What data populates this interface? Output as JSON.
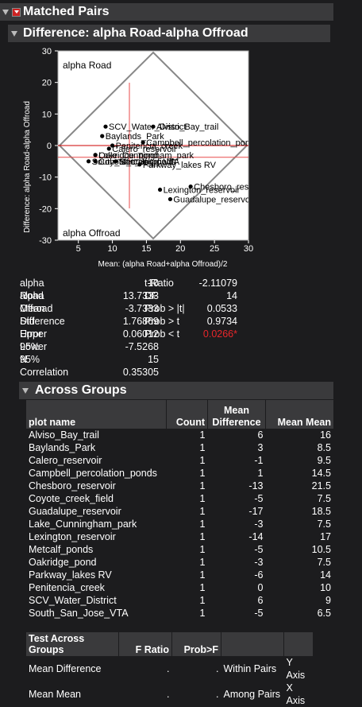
{
  "title": "Matched Pairs",
  "diff_title": "Difference: alpha Road-alpha Offroad",
  "plot": {
    "y_label": "Difference: alpha Road-alpha Offroad",
    "x_label": "Mean: (alpha Road+alpha Offroad)/2",
    "top_label": "alpha Road",
    "bottom_label": "alpha Offroad",
    "x_ticks": [
      "5",
      "10",
      "15",
      "20",
      "25",
      "30"
    ],
    "y_ticks": [
      "30",
      "20",
      "10",
      "0",
      "-10",
      "-20",
      "-30"
    ]
  },
  "chart_data": {
    "type": "scatter",
    "xlabel": "Mean: (alpha Road+alpha Offroad)/2",
    "ylabel": "Difference: alpha Road-alpha Offroad",
    "xlim": [
      2,
      30
    ],
    "ylim": [
      -30,
      30
    ],
    "points": [
      {
        "label": "Alviso_Bay_trail",
        "x": 16,
        "y": 6
      },
      {
        "label": "Baylands_Park",
        "x": 8.5,
        "y": 3
      },
      {
        "label": "Calero_reservoir",
        "x": 9.5,
        "y": -1
      },
      {
        "label": "Campbell_percolation_ponds",
        "x": 14.5,
        "y": 1
      },
      {
        "label": "Chesboro_reservoir",
        "x": 21.5,
        "y": -13
      },
      {
        "label": "Coyote_creek_field",
        "x": 7.5,
        "y": -5
      },
      {
        "label": "Guadalupe_reservoir",
        "x": 18.5,
        "y": -17
      },
      {
        "label": "Lake_Cunningham_park",
        "x": 7.5,
        "y": -3
      },
      {
        "label": "Lexington_reservoir",
        "x": 17,
        "y": -14
      },
      {
        "label": "Metcalf_ponds",
        "x": 10.5,
        "y": -5
      },
      {
        "label": "Oakridge_pond",
        "x": 7.5,
        "y": -3
      },
      {
        "label": "Parkway_lakes RV",
        "x": 14,
        "y": -6
      },
      {
        "label": "Penitencia_creek",
        "x": 10,
        "y": 0
      },
      {
        "label": "SCV_Water_District",
        "x": 9,
        "y": 6
      },
      {
        "label": "South_San_Jose_VTA",
        "x": 6.5,
        "y": -5
      }
    ]
  },
  "stats_left": [
    {
      "label": "alpha Road",
      "value": "10"
    },
    {
      "label": "alpha Offroad",
      "value": "13.7333"
    },
    {
      "label": "Mean Difference",
      "value": "-3.7333"
    },
    {
      "label": "Std Error",
      "value": "1.76869"
    },
    {
      "label": "Upper 95%",
      "value": "0.06012"
    },
    {
      "label": "Lower 95%",
      "value": "-7.5268"
    },
    {
      "label": "N",
      "value": "15"
    },
    {
      "label": "Correlation",
      "value": "0.35305"
    }
  ],
  "stats_right": [
    {
      "label": "t-Ratio",
      "value": "-2.11079"
    },
    {
      "label": "DF",
      "value": "14"
    },
    {
      "label": "Prob > |t|",
      "value": "0.0533"
    },
    {
      "label": "Prob > t",
      "value": "0.9734"
    },
    {
      "label": "Prob < t",
      "value": "0.0266*"
    }
  ],
  "colors": {
    "significant": "#e8262a",
    "mean_line": "#e84a4a",
    "frame": "#888888"
  },
  "across_groups": {
    "title": "Across Groups",
    "headers": [
      "plot name",
      "Count",
      "Mean Difference",
      "Mean Mean"
    ],
    "rows": [
      [
        "Alviso_Bay_trail",
        "1",
        "6",
        "16"
      ],
      [
        "Baylands_Park",
        "1",
        "3",
        "8.5"
      ],
      [
        "Calero_reservoir",
        "1",
        "-1",
        "9.5"
      ],
      [
        "Campbell_percolation_ponds",
        "1",
        "1",
        "14.5"
      ],
      [
        "Chesboro_reservoir",
        "1",
        "-13",
        "21.5"
      ],
      [
        "Coyote_creek_field",
        "1",
        "-5",
        "7.5"
      ],
      [
        "Guadalupe_reservoir",
        "1",
        "-17",
        "18.5"
      ],
      [
        "Lake_Cunningham_park",
        "1",
        "-3",
        "7.5"
      ],
      [
        "Lexington_reservoir",
        "1",
        "-14",
        "17"
      ],
      [
        "Metcalf_ponds",
        "1",
        "-5",
        "10.5"
      ],
      [
        "Oakridge_pond",
        "1",
        "-3",
        "7.5"
      ],
      [
        "Parkway_lakes RV",
        "1",
        "-6",
        "14"
      ],
      [
        "Penitencia_creek",
        "1",
        "0",
        "10"
      ],
      [
        "SCV_Water_District",
        "1",
        "6",
        "9"
      ],
      [
        "South_San_Jose_VTA",
        "1",
        "-5",
        "6.5"
      ]
    ]
  },
  "test_across": {
    "headers": [
      "Test Across Groups",
      "F Ratio",
      "Prob>F",
      "",
      ""
    ],
    "rows": [
      [
        "Mean Difference",
        ".",
        ".",
        "Within Pairs",
        "Y Axis"
      ],
      [
        "Mean Mean",
        ".",
        ".",
        "Among Pairs",
        "X Axis"
      ]
    ]
  }
}
